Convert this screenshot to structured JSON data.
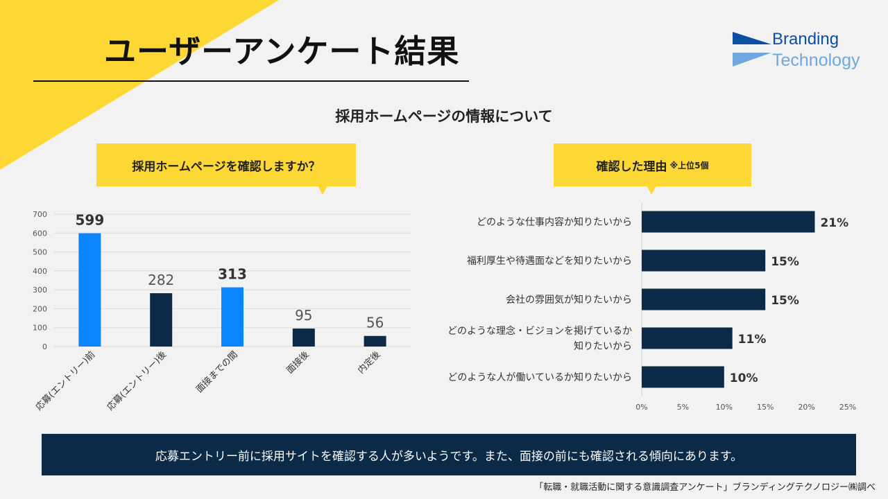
{
  "title": "ユーザーアンケート結果",
  "logo": {
    "line1": "Branding",
    "line2": "Technology"
  },
  "section_heading": "採用ホームページの情報について",
  "left_callout": "採用ホームページを確認しますか？",
  "right_callout": {
    "main": "確認した理由",
    "note": "※上位5個"
  },
  "summary": "応募エントリー前に採用サイトを確認する人が多いようです。また、面接の前にも確認される傾向にあります。",
  "source": "「転職・就職活動に関する意識調査アンケート」ブランディングテクノロジー㈱調べ",
  "colors": {
    "yellow": "#fdd835",
    "navy": "#0a2a47",
    "blue": "#0a84ff"
  },
  "chart_data": [
    {
      "type": "bar",
      "title": "採用ホームページを確認しますか？",
      "categories": [
        "応募(エントリー)前",
        "応募(エントリー)後",
        "面接までの間",
        "面接後",
        "内定後"
      ],
      "values": [
        599,
        282,
        313,
        95,
        56
      ],
      "highlight": [
        true,
        false,
        true,
        false,
        false
      ],
      "ylim": [
        0,
        700
      ],
      "yticks": [
        0,
        100,
        200,
        300,
        400,
        500,
        600,
        700
      ],
      "grid": true
    },
    {
      "type": "bar",
      "orientation": "horizontal",
      "title": "確認した理由",
      "categories": [
        [
          "どのような仕事内容か知りたいから"
        ],
        [
          "福利厚生や待遇面などを知りたいから"
        ],
        [
          "会社の雰囲気が知りたいから"
        ],
        [
          "どのような理念・ビジョンを掲げているか",
          "知りたいから"
        ],
        [
          "どのような人が働いているか知りたいから"
        ]
      ],
      "values": [
        21,
        15,
        15,
        11,
        10
      ],
      "value_labels": [
        "21%",
        "15%",
        "15%",
        "11%",
        "10%"
      ],
      "xlim": [
        0,
        25
      ],
      "xticks": [
        0,
        5,
        10,
        15,
        20,
        25
      ],
      "xtick_labels": [
        "0%",
        "5%",
        "10%",
        "15%",
        "20%",
        "25%"
      ]
    }
  ]
}
